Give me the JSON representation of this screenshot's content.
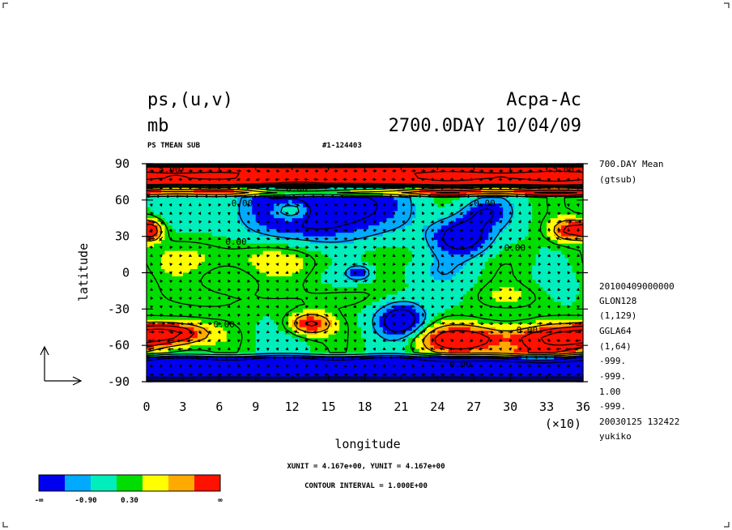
{
  "chart_data": {
    "type": "heatmap",
    "title": "ps,(u,v)",
    "units": "mb",
    "experiment": "Acpa-Ac",
    "time_label": "2700.0DAY 10/04/09",
    "subtitle_left": "PS TMEAN SUB",
    "subtitle_right": "#1-124403",
    "xlabel": "longitude",
    "ylabel": "latitude",
    "x_ticks": [
      "0",
      "3",
      "6",
      "9",
      "12",
      "15",
      "18",
      "21",
      "24",
      "27",
      "30",
      "33",
      "36"
    ],
    "x_multiplier": "(×10)",
    "y_ticks": [
      "90",
      "60",
      "30",
      "0",
      "-30",
      "-60",
      "-90"
    ],
    "xlim": [
      0,
      360
    ],
    "ylim": [
      -90,
      90
    ],
    "contour_labels": [
      {
        "text": "5.00",
        "lon": 10,
        "lat": 83
      },
      {
        "text": "5.00",
        "lon": 335,
        "lat": 83
      },
      {
        "text": "0.00",
        "lon": 70,
        "lat": 55
      },
      {
        "text": "0.00",
        "lon": 115,
        "lat": 67
      },
      {
        "text": "0.00",
        "lon": 65,
        "lat": 23
      },
      {
        "text": "0.00",
        "lon": 295,
        "lat": 18
      },
      {
        "text": "0.00",
        "lon": 270,
        "lat": 55
      },
      {
        "text": "0.00",
        "lon": 55,
        "lat": -45
      },
      {
        "text": "0.00",
        "lon": 305,
        "lat": -50
      },
      {
        "text": "0.00",
        "lon": 250,
        "lat": -78
      }
    ],
    "side_info": [
      "700.DAY Mean",
      "(gtsub)",
      "20100409000000",
      "GLON128",
      "(1,129)",
      "GGLA64",
      "(1,64)",
      "-999.",
      "-999.",
      "1.00",
      "-999.",
      "20030125 132422",
      "yukiko"
    ],
    "unit_vector_note": "XUNIT = 4.167e+00, YUNIT = 4.167e+00",
    "contour_interval": "CONTOUR INTERVAL = 1.000E+00",
    "colorbar": {
      "colors": [
        "#0000ee",
        "#00aaff",
        "#00eebb",
        "#00dd00",
        "#ffff00",
        "#ffaa00",
        "#ff1100"
      ],
      "labels": [
        "-∞",
        "-0.90",
        "0.30",
        "∞"
      ]
    },
    "fields": {
      "blobs": [
        {
          "lon": 140,
          "lat": 54,
          "rlon": 60,
          "rlat": 26,
          "amp": -3.0
        },
        {
          "lon": 260,
          "lat": 30,
          "rlon": 25,
          "rlat": 16,
          "amp": -2.4
        },
        {
          "lon": 85,
          "lat": 12,
          "rlon": 90,
          "rlat": 16,
          "amp": 0.8
        },
        {
          "lon": 120,
          "lat": 52,
          "rlon": 18,
          "rlat": 10,
          "amp": 2.6
        },
        {
          "lon": 350,
          "lat": 35,
          "rlon": 16,
          "rlat": 9,
          "amp": 2.6
        },
        {
          "lon": 5,
          "lat": 35,
          "rlon": 8,
          "rlat": 8,
          "amp": 2.2
        },
        {
          "lon": 280,
          "lat": 50,
          "rlon": 20,
          "rlat": 12,
          "amp": -1.4
        },
        {
          "lon": 210,
          "lat": -40,
          "rlon": 20,
          "rlat": 15,
          "amp": -2.6
        },
        {
          "lon": 135,
          "lat": -42,
          "rlon": 18,
          "rlat": 9,
          "amp": 2.5
        },
        {
          "lon": 20,
          "lat": -50,
          "rlon": 30,
          "rlat": 9,
          "amp": 3.2
        },
        {
          "lon": 340,
          "lat": -55,
          "rlon": 40,
          "rlat": 11,
          "amp": 3.2
        },
        {
          "lon": 260,
          "lat": -55,
          "rlon": 40,
          "rlat": 12,
          "amp": 3.0
        },
        {
          "lon": 310,
          "lat": -68,
          "rlon": 35,
          "rlat": 6,
          "amp": 1.5
        },
        {
          "lon": 175,
          "lat": 0,
          "rlon": 10,
          "rlat": 6,
          "amp": -1.8
        },
        {
          "lon": 60,
          "lat": -20,
          "rlon": 40,
          "rlat": 12,
          "amp": 0.5
        },
        {
          "lon": 300,
          "lat": -20,
          "rlon": 30,
          "rlat": 10,
          "amp": 0.6
        },
        {
          "lon": 160,
          "lat": -20,
          "rlon": 30,
          "rlat": 10,
          "amp": 0.6
        },
        {
          "lon": 230,
          "lat": 0,
          "rlon": 40,
          "rlat": 12,
          "amp": -0.4
        }
      ],
      "bands": [
        {
          "lat0": 70,
          "lat1": 90,
          "amp": 5.5
        },
        {
          "lat0": 63,
          "lat1": 70,
          "amp": 2.2
        },
        {
          "lat0": -90,
          "lat1": -67,
          "amp": -3.5
        }
      ],
      "background": -0.3
    }
  }
}
